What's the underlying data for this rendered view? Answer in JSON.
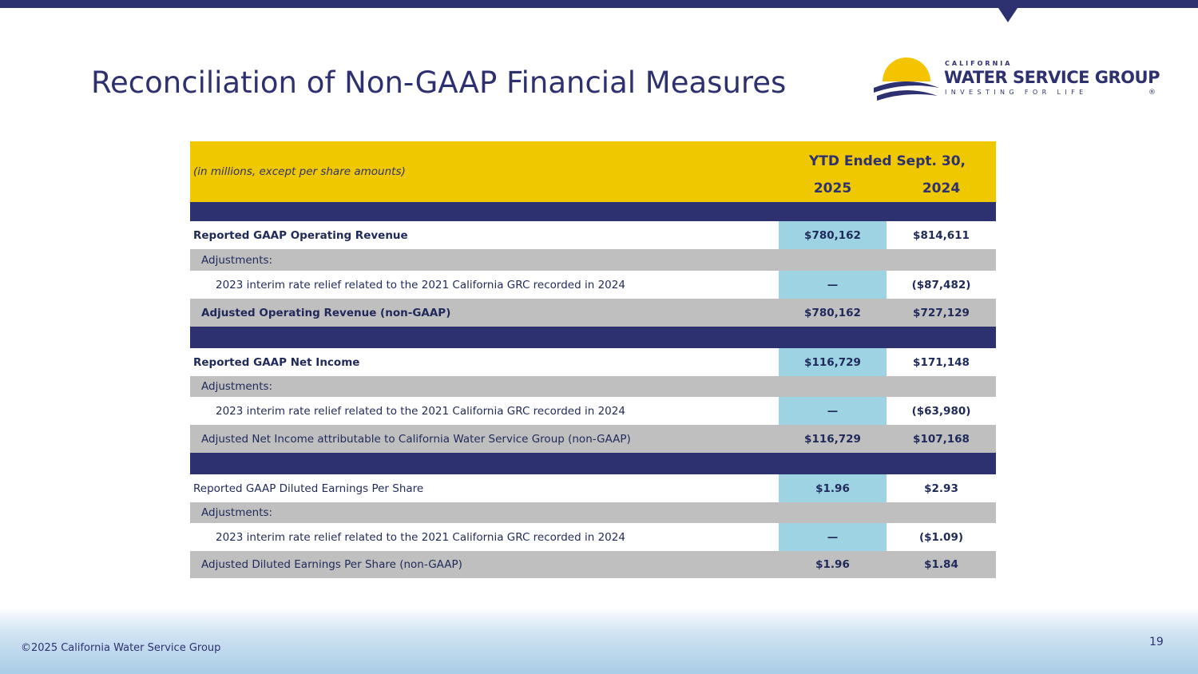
{
  "header": {
    "title": "Reconciliation of Non-GAAP Financial Measures"
  },
  "logo": {
    "top": "CALIFORNIA",
    "name": "WATER SERVICE GROUP",
    "tagline": "INVESTING FOR LIFE",
    "mark": "®"
  },
  "table": {
    "note": "(in millions, except per share amounts)",
    "period": "YTD Ended Sept. 30,",
    "columns": [
      "2025",
      "2024"
    ],
    "sections": [
      {
        "rows": [
          {
            "label": "Reported GAAP Operating Revenue",
            "values": [
              "$780,162",
              "$814,611"
            ]
          },
          {
            "label": "Adjustments:"
          },
          {
            "label": "2023 interim rate relief related to the 2021 California GRC recorded in 2024",
            "values": [
              "—",
              "($87,482)"
            ]
          },
          {
            "label": "Adjusted Operating Revenue (non-GAAP)",
            "values": [
              "$780,162",
              "$727,129"
            ]
          }
        ]
      },
      {
        "rows": [
          {
            "label": "Reported GAAP Net Income",
            "values": [
              "$116,729",
              "$171,148"
            ]
          },
          {
            "label": "Adjustments:"
          },
          {
            "label": "2023 interim rate relief related to the 2021 California GRC recorded in 2024",
            "values": [
              "—",
              "($63,980)"
            ]
          },
          {
            "label": "Adjusted Net Income attributable to California Water Service Group  (non-GAAP)",
            "values": [
              "$116,729",
              "$107,168"
            ]
          }
        ]
      },
      {
        "rows": [
          {
            "label": "Reported GAAP Diluted Earnings Per Share",
            "values": [
              "$1.96",
              "$2.93"
            ]
          },
          {
            "label": "Adjustments:"
          },
          {
            "label": "2023 interim rate relief related to the 2021 California GRC recorded in 2024",
            "values": [
              "—",
              "($1.09)"
            ]
          },
          {
            "label": "Adjusted Diluted Earnings Per Share (non-GAAP)",
            "values": [
              "$1.96",
              "$1.84"
            ]
          }
        ]
      }
    ]
  },
  "footer": {
    "copyright": "©2025 California Water Service Group",
    "page": "19"
  }
}
